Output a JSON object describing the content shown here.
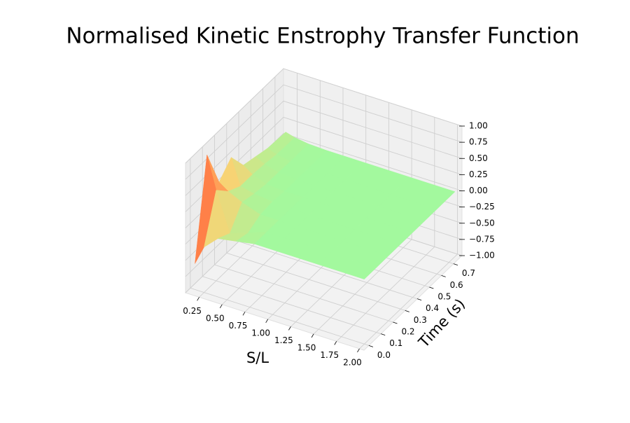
{
  "chart_data": {
    "type": "surface3d",
    "title": "Normalised Kinetic Enstrophy Transfer Function",
    "xlabel": "S/L",
    "ylabel": "Time (s)",
    "x": [
      0.15,
      0.25,
      0.4,
      0.6,
      0.8,
      1.0,
      1.5,
      2.0
    ],
    "y": [
      0,
      0.1,
      0.2,
      0.3,
      0.4,
      0.5,
      0.6,
      0.75
    ],
    "z": [
      [
        -0.6,
        -0.3,
        -0.1,
        -0.05,
        0,
        0,
        0,
        0
      ],
      [
        0.9,
        0.4,
        -0.2,
        -0.1,
        0,
        0,
        0,
        0
      ],
      [
        0.3,
        0.2,
        0.1,
        0,
        0,
        0,
        0,
        0
      ],
      [
        0.5,
        0.1,
        0.05,
        0.02,
        0,
        0,
        0,
        0
      ],
      [
        0.2,
        0.1,
        0.02,
        0,
        0,
        0,
        0,
        0
      ],
      [
        0.15,
        0.08,
        0.02,
        0,
        0,
        0,
        0,
        0
      ],
      [
        0.1,
        0.05,
        0.01,
        0,
        0,
        0,
        0,
        0
      ],
      [
        0.08,
        0.04,
        0.01,
        0,
        0,
        0,
        0,
        0
      ]
    ],
    "colormap": [
      "#a3f99e",
      "#ffd070",
      "#ff7040",
      "#ff1a00"
    ],
    "xlim": [
      0.1,
      2.05
    ],
    "ylim": [
      -0.04,
      0.77
    ],
    "zlim": [
      -1,
      1
    ],
    "xticks": [
      0.25,
      {
        "value": 0.5,
        "label": "0.50"
      },
      0.75,
      {
        "value": 1,
        "label": "1.00"
      },
      1.25,
      {
        "value": 1.5,
        "label": "1.50"
      },
      1.75,
      {
        "value": 2,
        "label": "2.00"
      }
    ],
    "yticks": [
      {
        "value": 0,
        "label": "0.0"
      },
      0.1,
      0.2,
      0.3,
      0.4,
      0.5,
      0.6,
      0.7
    ],
    "zticks": [
      {
        "value": -1,
        "label": "−1.00"
      },
      {
        "value": -0.75,
        "label": "−0.75"
      },
      {
        "value": -0.5,
        "label": "−0.50"
      },
      {
        "value": -0.25,
        "label": "−0.25"
      },
      {
        "value": 0,
        "label": "0.00"
      },
      0.25,
      {
        "value": 0.5,
        "label": "0.50"
      },
      0.75,
      {
        "value": 1,
        "label": "1.00"
      }
    ],
    "grid": true
  }
}
